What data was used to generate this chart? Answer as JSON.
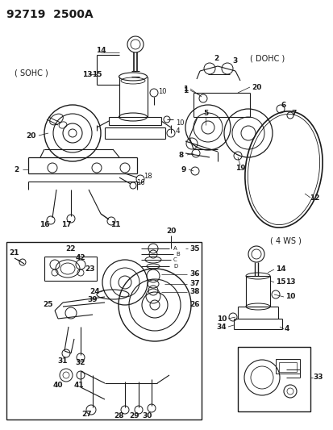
{
  "title": "92719  2500A",
  "bg": "#f5f5f5",
  "gray": "#1a1a1a",
  "sections": {
    "sohc_label": "( SOHC )",
    "dohc_label": "( DOHC )",
    "ws_label": "( 4 WS )"
  },
  "figsize": [
    4.14,
    5.33
  ],
  "dpi": 100
}
